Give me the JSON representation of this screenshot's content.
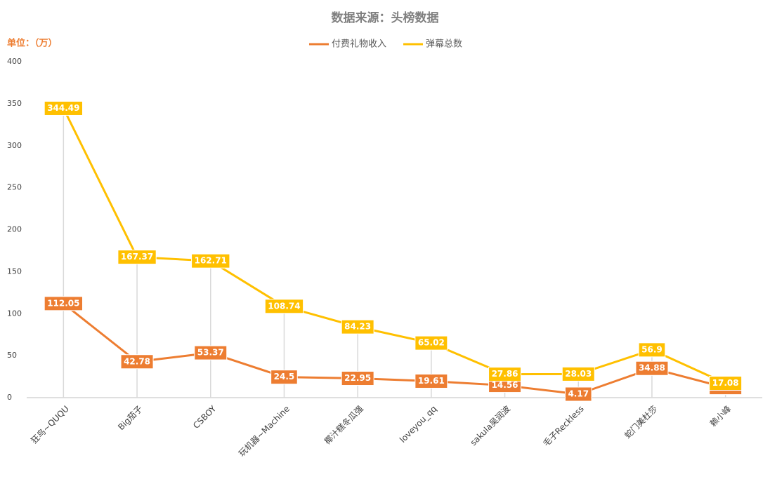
{
  "chart_data": {
    "type": "line",
    "title": "数据来源：头榜数据",
    "unit_label": "单位：（万）",
    "categories": [
      "狂鸟~QUQU",
      "Big茄子",
      "CSBOY",
      "玩机器~Machine",
      "椰汁糕冬瓜强",
      "loveyou_qq",
      "sakula吴润波",
      "毛子Reckless",
      "蛇门美杜莎",
      "赖小峰"
    ],
    "series": [
      {
        "name": "付费礼物收入",
        "color": "#ED7D31",
        "values": [
          112.05,
          42.78,
          53.37,
          24.5,
          22.95,
          19.61,
          14.56,
          4.17,
          34.88,
          12.02
        ]
      },
      {
        "name": "弹幕总数",
        "color": "#FFC000",
        "values": [
          344.49,
          167.37,
          162.71,
          108.74,
          84.23,
          65.02,
          27.86,
          28.03,
          56.9,
          17.08
        ]
      }
    ],
    "ylim": [
      0,
      400
    ],
    "yticks": [
      0,
      50,
      100,
      150,
      200,
      250,
      300,
      350,
      400
    ],
    "drop_lines": true,
    "legend": "top"
  }
}
